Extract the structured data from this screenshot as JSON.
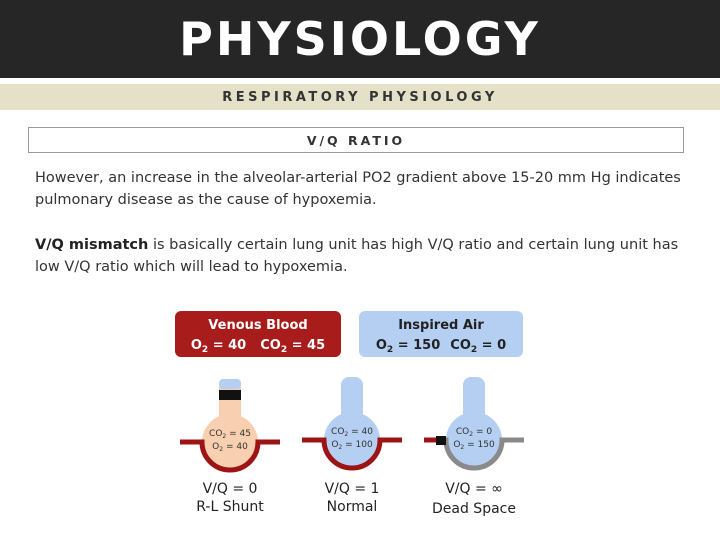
{
  "header": {
    "title": "PHYSIOLOGY"
  },
  "subheader": {
    "label": "RESPIRATORY PHYSIOLOGY"
  },
  "section": {
    "label": "V/Q RATIO"
  },
  "paragraphs": {
    "p1": "However, an increase in the alveolar-arterial PO2 gradient above 15-20 mm Hg indicates pulmonary disease as the cause of hypoxemia.",
    "p2_bold": "V/Q mismatch",
    "p2_rest": " is basically certain lung unit has high V/Q ratio and certain lung unit has low V/Q ratio which will lead to hypoxemia."
  },
  "diagram": {
    "venous": {
      "title": "Venous Blood",
      "o2_sym": "O",
      "o2_sub": "2",
      "o2_val": " = 40",
      "co2_sym": "CO",
      "co2_sub": "2",
      "co2_val": " = 45",
      "color": "#a81c1c"
    },
    "inspired": {
      "title": "Inspired Air",
      "o2_sym": "O",
      "o2_sub": "2",
      "o2_val": " = 150",
      "co2_sym": "CO",
      "co2_sub": "2",
      "co2_val": " = 0",
      "color": "#b4cff2"
    },
    "units": [
      {
        "co2": "45",
        "o2": "40",
        "ratio": "V/Q = 0",
        "label": "R-L Shunt",
        "fill": "#f8cfb0"
      },
      {
        "co2": "40",
        "o2": "100",
        "ratio": "V/Q = 1",
        "label": "Normal",
        "fill": "#b4cff2"
      },
      {
        "co2": "0",
        "o2": "150",
        "ratio": "V/Q = ∞",
        "label": "Dead Space",
        "fill": "#b4cff2"
      }
    ],
    "gas_co2_prefix": "CO",
    "gas_o2_prefix": "O",
    "gas_sub": "2",
    "gas_eq": " = "
  }
}
